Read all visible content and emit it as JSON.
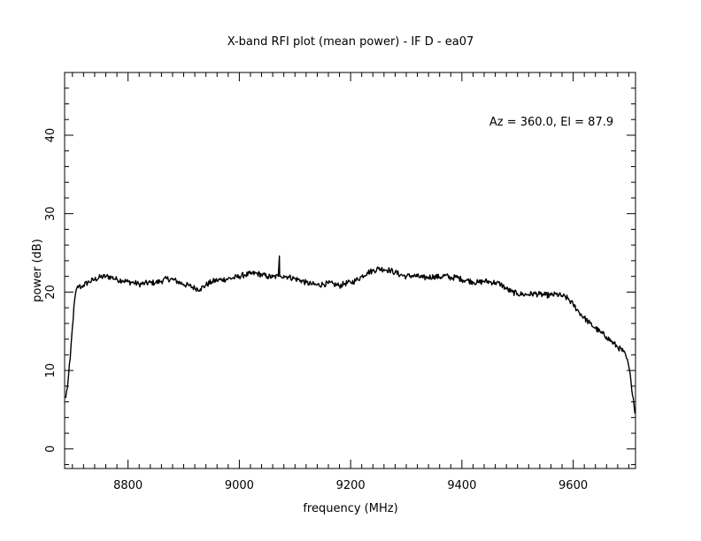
{
  "chart_data": {
    "type": "line",
    "title": "X-band RFI plot (mean power) - IF D - ea07",
    "xlabel": "frequency (MHz)",
    "ylabel": "power (dB)",
    "annotation": "Az = 360.0, El = 87.9",
    "xlim": [
      8686,
      9712
    ],
    "ylim": [
      -2.5,
      48
    ],
    "x_ticks": [
      8800,
      9000,
      9200,
      9400,
      9600
    ],
    "y_ticks": [
      0,
      10,
      20,
      30,
      40
    ],
    "x_minor_step": 20,
    "y_minor_step": 2,
    "grid": false,
    "line_color": "#000000",
    "series": [
      {
        "x": [
          8688,
          8692,
          8696,
          8700,
          8704,
          8708,
          8712,
          8716,
          8720,
          8730,
          8740,
          8750,
          8760,
          8770,
          8780,
          8790,
          8800,
          8810,
          8820,
          8830,
          8840,
          8850,
          8860,
          8870,
          8880,
          8890,
          8900,
          8910,
          8920,
          8930,
          8940,
          8950,
          8960,
          8970,
          8980,
          8990,
          9000,
          9010,
          9020,
          9030,
          9040,
          9050,
          9060,
          9070,
          9072,
          9072.5,
          9073,
          9075,
          9080,
          9090,
          9100,
          9110,
          9120,
          9130,
          9140,
          9150,
          9160,
          9170,
          9180,
          9190,
          9200,
          9210,
          9220,
          9230,
          9240,
          9250,
          9260,
          9270,
          9280,
          9290,
          9300,
          9310,
          9320,
          9330,
          9340,
          9350,
          9360,
          9370,
          9380,
          9390,
          9400,
          9410,
          9420,
          9430,
          9440,
          9450,
          9460,
          9470,
          9480,
          9490,
          9500,
          9510,
          9520,
          9530,
          9540,
          9550,
          9560,
          9570,
          9580,
          9590,
          9600,
          9610,
          9620,
          9630,
          9640,
          9650,
          9660,
          9670,
          9680,
          9690,
          9695,
          9700,
          9704,
          9708,
          9711
        ],
        "y": [
          6.5,
          8.5,
          11.5,
          15.5,
          19.0,
          20.5,
          20.8,
          20.6,
          20.9,
          21.3,
          21.6,
          21.9,
          22.0,
          21.9,
          21.6,
          21.5,
          21.3,
          21.2,
          21.0,
          21.1,
          21.2,
          21.2,
          21.4,
          21.7,
          21.6,
          21.3,
          21.0,
          20.8,
          20.5,
          20.4,
          20.9,
          21.3,
          21.5,
          21.6,
          21.7,
          21.8,
          22.0,
          22.2,
          22.3,
          22.4,
          22.2,
          22.0,
          21.9,
          22.0,
          24.6,
          22.0,
          22.1,
          22.0,
          22.1,
          21.9,
          21.7,
          21.5,
          21.2,
          21.0,
          20.9,
          21.0,
          21.1,
          21.0,
          20.8,
          21.1,
          21.2,
          21.5,
          22.0,
          22.5,
          22.7,
          23.0,
          22.9,
          22.8,
          22.5,
          22.2,
          22.0,
          22.1,
          22.0,
          21.8,
          21.9,
          22.0,
          21.9,
          22.1,
          21.8,
          21.9,
          21.6,
          21.5,
          21.3,
          21.2,
          21.4,
          21.3,
          21.2,
          21.0,
          20.4,
          20.0,
          19.8,
          19.7,
          19.7,
          19.8,
          19.7,
          19.6,
          19.6,
          19.7,
          19.5,
          19.2,
          18.4,
          17.5,
          16.7,
          16.0,
          15.4,
          14.8,
          14.3,
          13.6,
          13.0,
          12.4,
          11.8,
          10.5,
          8.5,
          6.5,
          4.5
        ]
      }
    ]
  }
}
